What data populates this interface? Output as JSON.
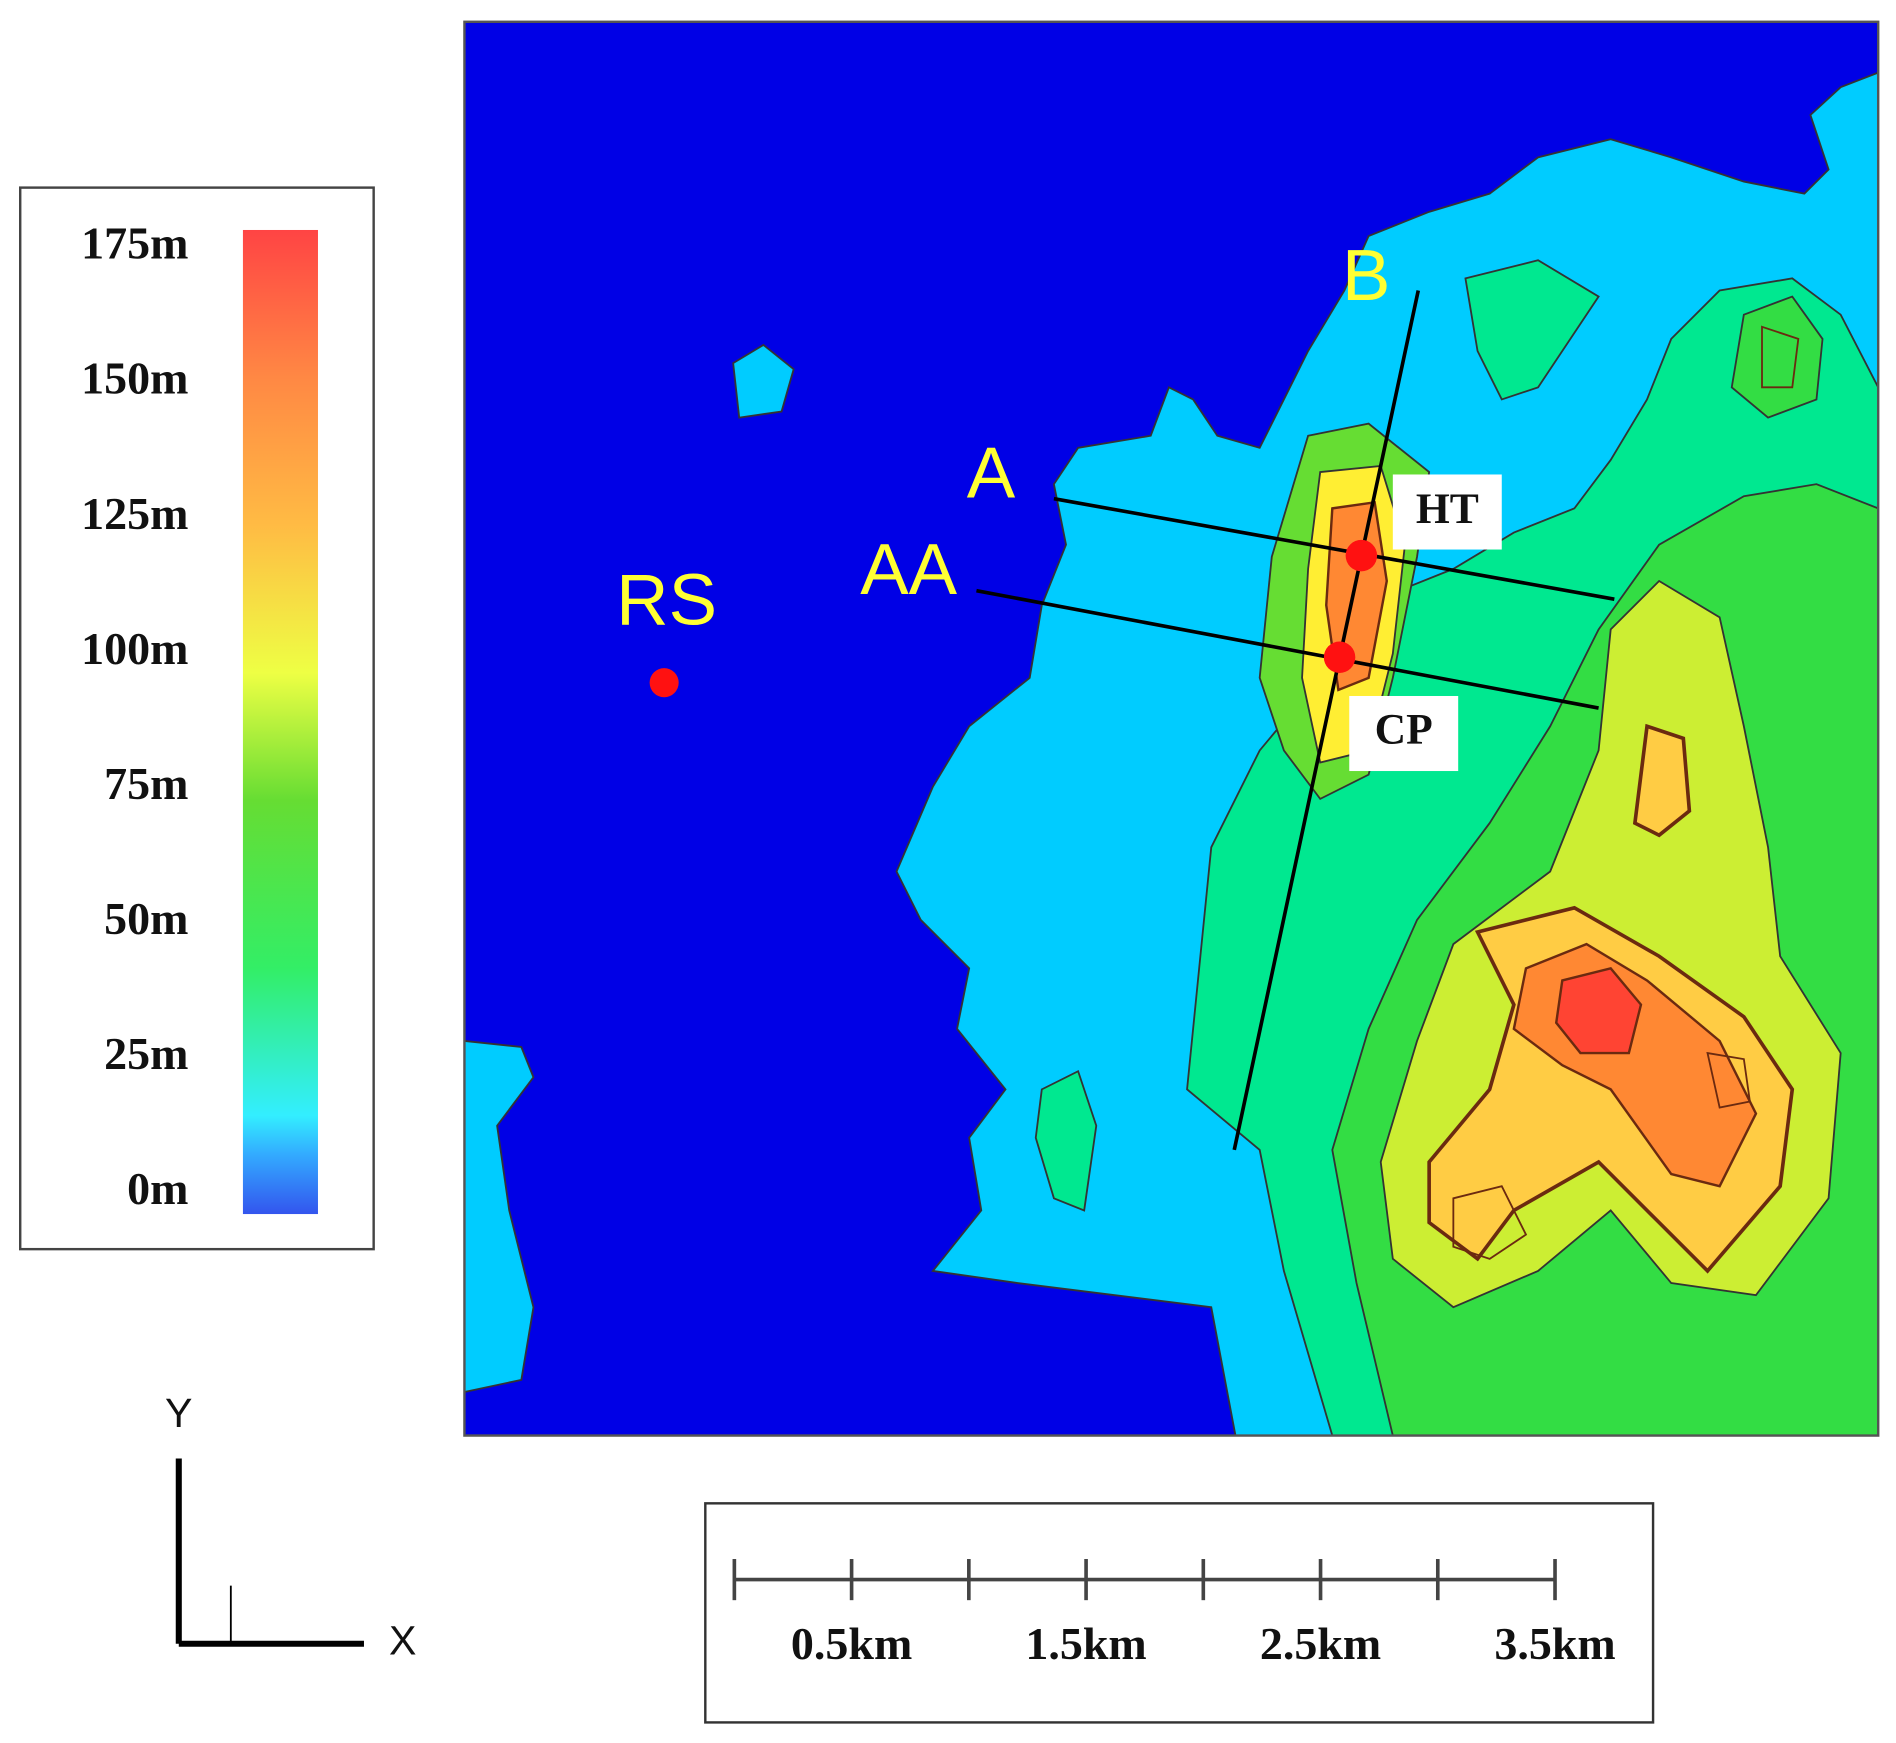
{
  "legend": {
    "labels": [
      "175m",
      "150m",
      "125m",
      "100m",
      "75m",
      "50m",
      "25m",
      "0m"
    ]
  },
  "map": {
    "labels": {
      "b": "B",
      "a": "A",
      "aa": "AA",
      "rs": "RS",
      "ht": "HT",
      "cp": "CP"
    }
  },
  "axes": {
    "x": "X",
    "y": "Y"
  },
  "scale_bar": {
    "labels": [
      "0.5km",
      "1.5km",
      "2.5km",
      "3.5km"
    ]
  }
}
